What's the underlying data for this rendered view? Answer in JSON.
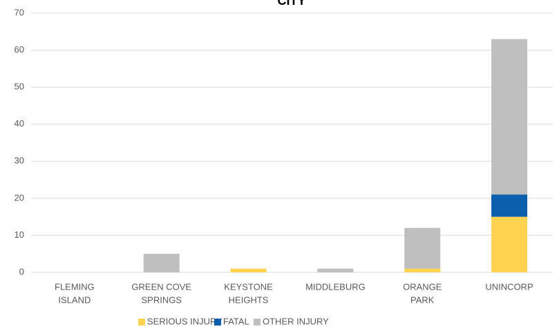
{
  "chart_data": {
    "type": "stacked_bar",
    "title": "CITY",
    "categories": [
      [
        "FLEMING",
        "ISLAND"
      ],
      [
        "GREEN COVE",
        "SPRINGS"
      ],
      [
        "KEYSTONE",
        "HEIGHTS"
      ],
      [
        "MIDDLEBURG"
      ],
      [
        "ORANGE",
        "PARK"
      ],
      [
        "UNINCORP"
      ]
    ],
    "series": [
      {
        "name": "SERIOUS INJURY",
        "color": "#ffd34f",
        "values": [
          0,
          0,
          1,
          0,
          1,
          15
        ]
      },
      {
        "name": "FATAL",
        "color": "#0b5fad",
        "values": [
          0,
          0,
          0,
          0,
          0,
          6
        ]
      },
      {
        "name": "OTHER INJURY",
        "color": "#bfbfbf",
        "values": [
          0,
          5,
          0,
          1,
          11,
          42
        ]
      }
    ],
    "ylim": [
      0,
      70
    ],
    "yticks": [
      0,
      10,
      20,
      30,
      40,
      50,
      60,
      70
    ],
    "grid": true,
    "legend": "bottom"
  }
}
